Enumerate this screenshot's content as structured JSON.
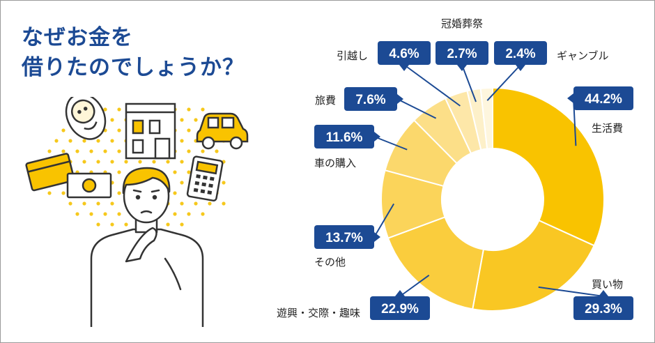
{
  "title": {
    "line1": "なぜお金を",
    "line2": "借りたのでしょうか？"
  },
  "colors": {
    "title": "#1c4a94",
    "label_box": "#1c4a94",
    "segments": [
      "#f9c300",
      "#f9c723",
      "#facd3d",
      "#fbd45a",
      "#fbd86c",
      "#fcdf88",
      "#fde7a8",
      "#fdf0c9",
      "#fef6de"
    ]
  },
  "illustration": {
    "description_icons": [
      "baby-icon",
      "house-icon",
      "car-icon",
      "credit-card-icon",
      "cash-icon",
      "calculator-icon",
      "thinking-person-icon"
    ]
  },
  "chart_data": {
    "type": "pie",
    "donut": true,
    "start": "top-clockwise",
    "unit": "%",
    "categories": [
      "生活費",
      "買い物",
      "遊興・交際・趣味",
      "その他",
      "車の購入",
      "旅費",
      "引越し",
      "冠婚葬祭",
      "ギャンブル"
    ],
    "values": [
      44.2,
      29.3,
      22.9,
      13.7,
      11.6,
      7.6,
      4.6,
      2.7,
      2.4
    ],
    "labels": [
      "44.2%",
      "29.3%",
      "22.9%",
      "13.7%",
      "11.6%",
      "7.6%",
      "4.6%",
      "2.7%",
      "2.4%"
    ]
  }
}
